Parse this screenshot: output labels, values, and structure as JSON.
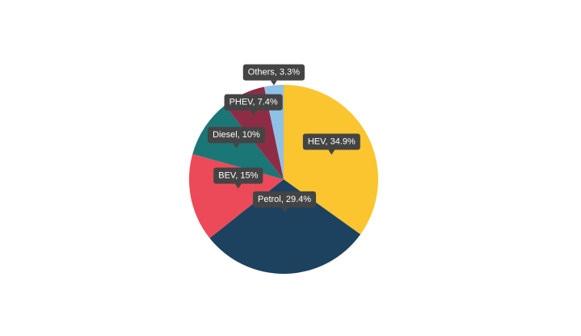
{
  "chart_data": {
    "type": "pie",
    "values": [
      34.9,
      29.4,
      15,
      10,
      7.4,
      3.3
    ],
    "value_labels": [
      "HEV, 34.9%",
      "Petrol, 29.4%",
      "BEV, 15%",
      "Diesel, 10%",
      "PHEV, 7.4%",
      "Others, 3.3%"
    ],
    "colors": [
      "#fbc52f",
      "#1d4260",
      "#ec4a58",
      "#1b7676",
      "#8e2c46",
      "#8fc1e6"
    ]
  }
}
